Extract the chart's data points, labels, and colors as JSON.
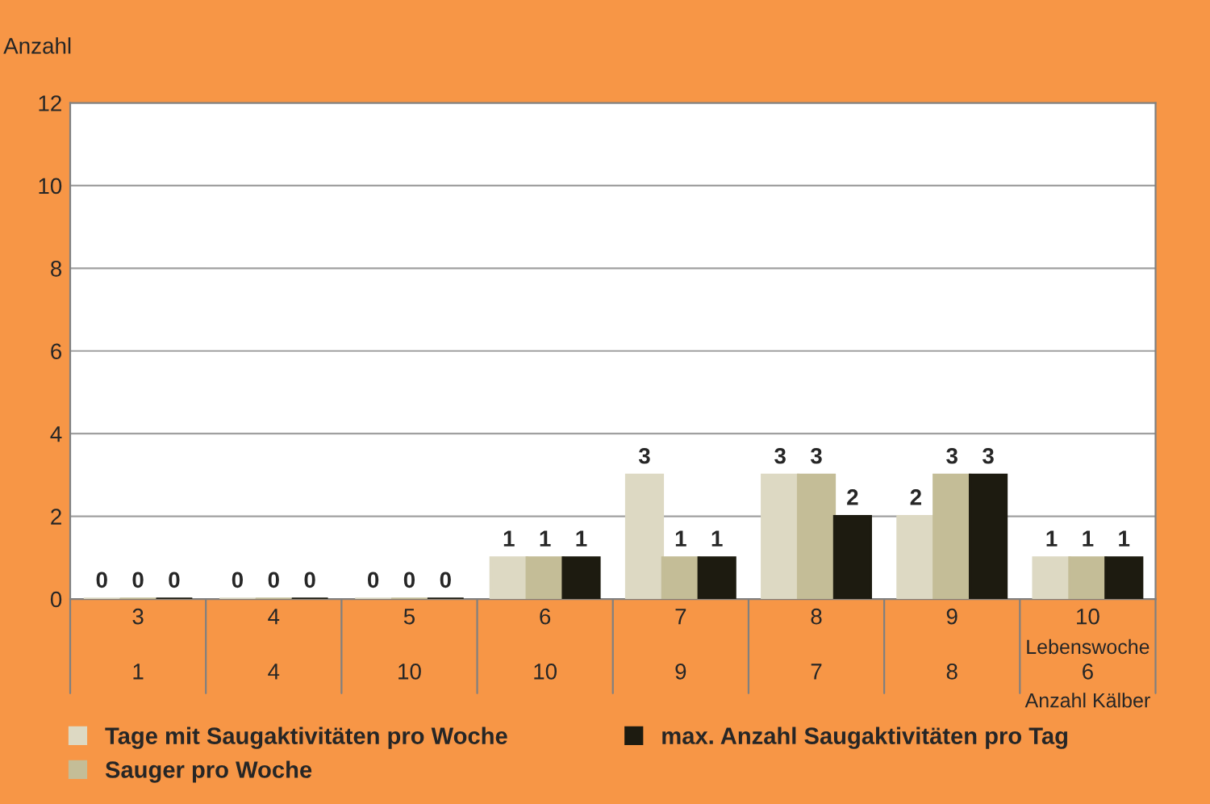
{
  "chart_data": {
    "type": "bar",
    "ylabel": "Anzahl",
    "categories": [
      "3\n1",
      "4\n4",
      "5\n10",
      "6\n10",
      "7\n9",
      "8\n7",
      "9\n8",
      "10\n6"
    ],
    "annotations": [
      "Lebenswoche",
      "Anzahl Kälber"
    ],
    "series": [
      {
        "name": "Tage mit Saugaktivitäten pro Woche",
        "color": "#ddd9c3",
        "values": [
          0,
          0,
          0,
          1,
          3,
          3,
          2,
          1
        ]
      },
      {
        "name": "Sauger pro Woche",
        "color": "#c4bd97",
        "values": [
          0,
          0,
          0,
          1,
          1,
          3,
          3,
          1
        ]
      },
      {
        "name": "max. Anzahl Saugaktivitäten pro Tag",
        "color": "#1d1b10",
        "values": [
          0,
          0,
          0,
          1,
          1,
          2,
          3,
          1
        ]
      }
    ],
    "ylim": [
      0,
      12
    ],
    "yticks": [
      0,
      2,
      4,
      6,
      8,
      10,
      12
    ],
    "grid": "y",
    "data_labels": true,
    "legend": "bottom"
  }
}
